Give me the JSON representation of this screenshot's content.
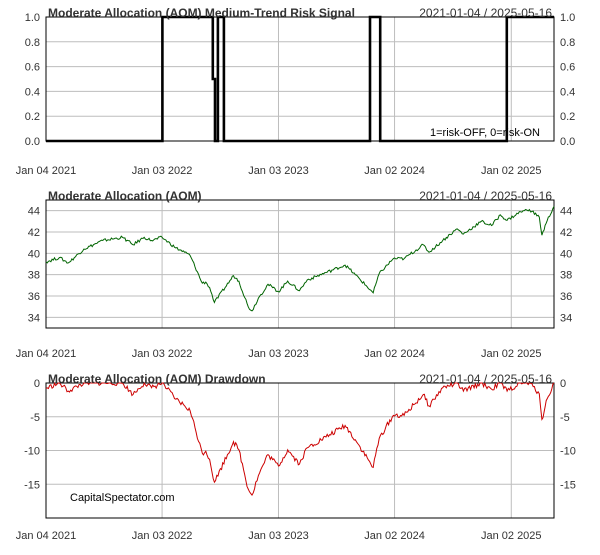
{
  "chart_data": [
    {
      "type": "line",
      "title": "Moderate Allocation (AOM) Medium-Trend Risk Signal",
      "date_range": "2021-01-04 / 2025-05-16",
      "ylim": [
        0,
        1
      ],
      "y_ticks": [
        "0.0",
        "0.2",
        "0.4",
        "0.6",
        "0.8",
        "1.0"
      ],
      "x_tick_labels": [
        "Jan 04 2021",
        "Jan 03 2022",
        "Jan 03 2023",
        "Jan 02 2024",
        "Jan 02 2025"
      ],
      "annotation": "1=risk-OFF, 0=risk-ON",
      "color": "#000000",
      "grid": true,
      "series": [
        {
          "x": [
            "2021-01-04",
            "2022-01-03",
            "2022-01-04",
            "2022-06-10",
            "2022-06-11",
            "2022-06-13",
            "2022-06-18",
            "2022-06-20",
            "2022-06-27",
            "2022-06-28",
            "2022-07-15",
            "2022-07-16",
            "2022-10-24",
            "2022-10-25",
            "2023-10-16",
            "2023-10-17",
            "2023-11-17",
            "2023-11-18",
            "2024-12-18",
            "2024-12-19",
            "2025-05-16"
          ],
          "values": [
            0,
            0,
            1,
            1,
            0.5,
            0.5,
            0,
            0,
            1,
            1,
            1,
            0,
            0,
            0,
            0,
            1,
            1,
            0,
            0,
            1,
            1
          ]
        }
      ]
    },
    {
      "type": "line",
      "title": "Moderate Allocation (AOM)",
      "date_range": "2021-01-04 / 2025-05-16",
      "ylim": [
        33,
        45
      ],
      "y_ticks": [
        "34",
        "36",
        "38",
        "40",
        "42",
        "44"
      ],
      "x_tick_labels": [
        "Jan 04 2021",
        "Jan 03 2022",
        "Jan 03 2023",
        "Jan 02 2024",
        "Jan 02 2025"
      ],
      "color": "#006400",
      "grid": true,
      "series": [
        {
          "x": [
            "2021-01-04",
            "2021-02-15",
            "2021-03-15",
            "2021-05-03",
            "2021-07-01",
            "2021-09-01",
            "2021-10-04",
            "2021-11-08",
            "2021-12-01",
            "2022-01-03",
            "2022-02-15",
            "2022-03-15",
            "2022-04-01",
            "2022-05-09",
            "2022-05-20",
            "2022-06-01",
            "2022-06-16",
            "2022-08-15",
            "2022-09-01",
            "2022-09-30",
            "2022-10-12",
            "2022-11-01",
            "2022-12-01",
            "2023-01-03",
            "2023-02-01",
            "2023-03-10",
            "2023-04-03",
            "2023-06-01",
            "2023-07-31",
            "2023-09-01",
            "2023-10-27",
            "2023-11-15",
            "2023-12-29",
            "2024-02-01",
            "2024-04-01",
            "2024-04-19",
            "2024-06-01",
            "2024-07-16",
            "2024-08-05",
            "2024-09-30",
            "2024-11-01",
            "2024-11-29",
            "2024-12-20",
            "2025-01-31",
            "2025-02-28",
            "2025-03-31",
            "2025-04-08",
            "2025-04-25",
            "2025-05-16"
          ],
          "values": [
            39.2,
            39.6,
            39.1,
            40.4,
            41.2,
            41.5,
            40.8,
            41.5,
            41.2,
            41.5,
            40.5,
            40.1,
            39.8,
            37.2,
            37.3,
            36.8,
            35.4,
            37.9,
            37.4,
            35.0,
            34.6,
            35.8,
            37.1,
            36.4,
            37.4,
            36.5,
            37.5,
            38.2,
            38.9,
            38.0,
            36.3,
            38.1,
            39.5,
            39.5,
            40.8,
            40.1,
            41.2,
            42.3,
            41.8,
            43.0,
            42.6,
            43.6,
            43.1,
            43.9,
            44.1,
            43.4,
            41.7,
            43.1,
            44.4
          ]
        }
      ]
    },
    {
      "type": "line",
      "title": "Moderate Allocation (AOM) Drawdown",
      "date_range": "2021-01-04 / 2025-05-16",
      "ylim": [
        -20,
        0
      ],
      "y_ticks": [
        "-15",
        "-10",
        "-5",
        "0"
      ],
      "x_tick_labels": [
        "Jan 04 2021",
        "Jan 03 2022",
        "Jan 03 2023",
        "Jan 02 2024",
        "Jan 02 2025"
      ],
      "annotation": "CapitalSpectator.com",
      "color": "#cc0000",
      "grid": true,
      "series": [
        {
          "x": [
            "2021-01-04",
            "2021-02-15",
            "2021-03-15",
            "2021-05-03",
            "2021-07-01",
            "2021-09-01",
            "2021-10-04",
            "2021-11-08",
            "2021-12-01",
            "2022-01-03",
            "2022-02-15",
            "2022-03-15",
            "2022-04-01",
            "2022-05-09",
            "2022-05-20",
            "2022-06-01",
            "2022-06-16",
            "2022-08-15",
            "2022-09-01",
            "2022-09-30",
            "2022-10-12",
            "2022-11-01",
            "2022-12-01",
            "2023-01-03",
            "2023-02-01",
            "2023-03-10",
            "2023-04-03",
            "2023-06-01",
            "2023-07-31",
            "2023-09-01",
            "2023-10-27",
            "2023-11-15",
            "2023-12-29",
            "2024-02-01",
            "2024-04-01",
            "2024-04-19",
            "2024-06-01",
            "2024-07-16",
            "2024-08-05",
            "2024-09-30",
            "2024-11-01",
            "2024-11-29",
            "2024-12-20",
            "2025-01-31",
            "2025-02-28",
            "2025-03-31",
            "2025-04-08",
            "2025-04-25",
            "2025-05-16"
          ],
          "values": [
            -0.8,
            0,
            -1.2,
            0,
            0,
            0,
            -1.7,
            0,
            -0.7,
            0,
            -2.4,
            -3.4,
            -4.1,
            -10.4,
            -10.1,
            -11.3,
            -14.7,
            -8.7,
            -9.9,
            -15.7,
            -16.6,
            -13.7,
            -10.6,
            -12.3,
            -9.9,
            -12.0,
            -9.6,
            -8.0,
            -6.3,
            -8.4,
            -12.5,
            -8.2,
            -4.8,
            -4.8,
            -1.7,
            -3.4,
            -0.7,
            0,
            -1.2,
            0,
            -0.9,
            0,
            -1.2,
            0,
            0,
            -1.6,
            -5.4,
            -2.3,
            0
          ]
        }
      ]
    }
  ]
}
